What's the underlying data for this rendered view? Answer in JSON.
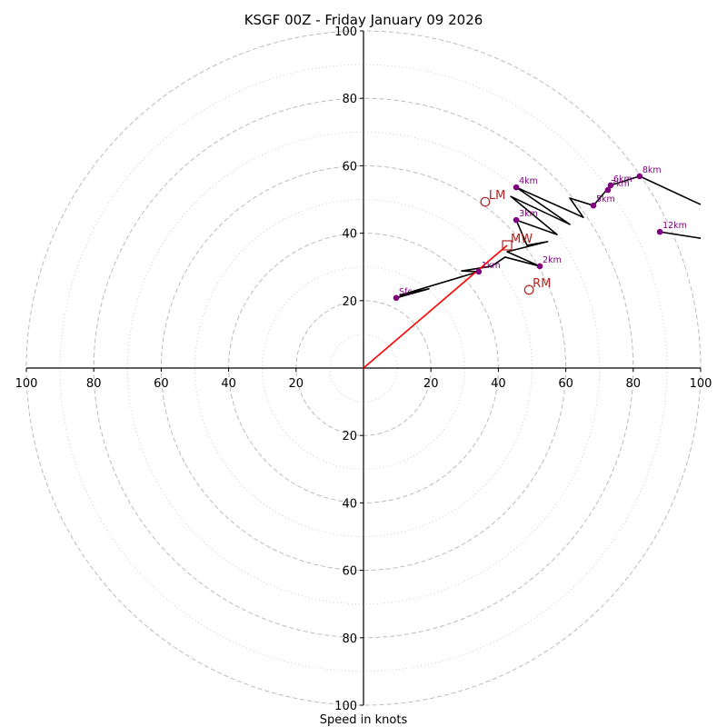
{
  "chart_data": {
    "type": "line",
    "subtype": "hodograph",
    "title": "KSGF 00Z - Friday January 09 2026",
    "xlabel": "Speed in knots",
    "ylabel": "",
    "xlim": [
      -100,
      100
    ],
    "ylim": [
      -100,
      100
    ],
    "grid": true,
    "rings": {
      "dashed": [
        20,
        40,
        60,
        80,
        100
      ],
      "dotted": [
        10,
        30,
        50,
        70,
        90
      ]
    },
    "x_tick_labels": [
      "100",
      "80",
      "60",
      "40",
      "20",
      "",
      "20",
      "40",
      "60",
      "80",
      "100"
    ],
    "x_ticks": [
      -100,
      -80,
      -60,
      -40,
      -20,
      0,
      20,
      40,
      60,
      80,
      100
    ],
    "y_tick_labels": [
      "100",
      "80",
      "60",
      "40",
      "20",
      "",
      "20",
      "40",
      "60",
      "80",
      "100"
    ],
    "y_ticks": [
      -100,
      -80,
      -60,
      -40,
      -20,
      0,
      20,
      40,
      60,
      80,
      100
    ],
    "colors": {
      "hodograph": "#000000",
      "height_markers": "#800080",
      "storm_motion": "#b22222",
      "mean_wind_vector": "#ff0000",
      "grid": "#bbbbbb"
    },
    "series": [
      {
        "name": "hodograph",
        "u": [
          9.7,
          19.4,
          10.8,
          34.2,
          29.1,
          38.0,
          42.0,
          52.3,
          42.6,
          54.6,
          48.5,
          45.3,
          57.4,
          43.7,
          61.2,
          45.3,
          65.2,
          61.2,
          68.2,
          73.3,
          81.9,
          100.0
        ],
        "v": [
          20.8,
          23.5,
          21.6,
          28.6,
          28.8,
          30.2,
          32.9,
          30.2,
          34.5,
          37.5,
          36.4,
          43.9,
          39.6,
          50.9,
          42.6,
          53.6,
          44.7,
          50.4,
          48.2,
          54.2,
          56.9,
          48.5
        ]
      },
      {
        "name": "upper-segment",
        "u": [
          87.9,
          100.0
        ],
        "v": [
          40.4,
          38.5
        ]
      }
    ],
    "height_markers": [
      {
        "label": "Sfc",
        "u": 9.7,
        "v": 20.8
      },
      {
        "label": "1km",
        "u": 34.2,
        "v": 28.6
      },
      {
        "label": "2km",
        "u": 52.3,
        "v": 30.2
      },
      {
        "label": "3km",
        "u": 45.3,
        "v": 43.9
      },
      {
        "label": "4km",
        "u": 45.3,
        "v": 53.6
      },
      {
        "label": "5km",
        "u": 68.2,
        "v": 48.2
      },
      {
        "label": "6km",
        "u": 73.3,
        "v": 54.2
      },
      {
        "label": "7km",
        "u": 72.5,
        "v": 52.8
      },
      {
        "label": "8km",
        "u": 81.9,
        "v": 56.9
      },
      {
        "label": "12km",
        "u": 87.9,
        "v": 40.4
      }
    ],
    "storm_motion": [
      {
        "label": "LM",
        "marker": "circle",
        "u": 36.1,
        "v": 49.3
      },
      {
        "label": "MW",
        "marker": "square",
        "u": 42.6,
        "v": 36.4
      },
      {
        "label": "RM",
        "marker": "circle",
        "u": 49.1,
        "v": 23.2
      }
    ],
    "mean_wind_vector": {
      "from_u": 0,
      "from_v": 0,
      "to_u": 42.6,
      "to_v": 36.4
    }
  }
}
